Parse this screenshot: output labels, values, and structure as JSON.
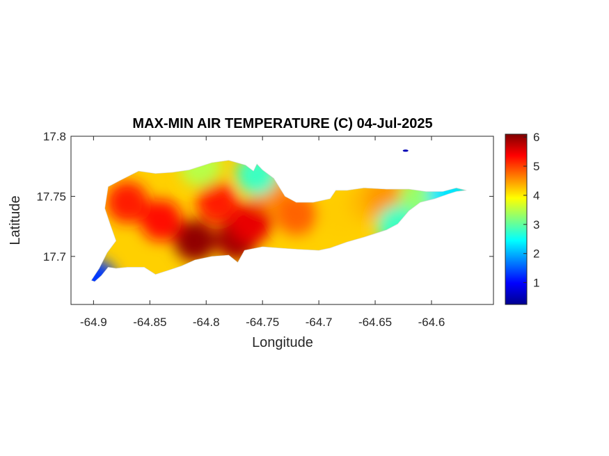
{
  "chart_data": {
    "type": "heatmap",
    "title": "MAX-MIN AIR TEMPERATURE (C) 04-Jul-2025",
    "xlabel": "Longitude",
    "ylabel": "Latitude",
    "xlim": [
      -64.92,
      -64.545
    ],
    "ylim": [
      17.66,
      17.8
    ],
    "xticks": [
      -64.9,
      -64.85,
      -64.8,
      -64.75,
      -64.7,
      -64.65,
      -64.6
    ],
    "xtick_labels": [
      "-64.9",
      "-64.85",
      "-64.8",
      "-64.75",
      "-64.7",
      "-64.65",
      "-64.6"
    ],
    "yticks": [
      17.7,
      17.75,
      17.8
    ],
    "ytick_labels": [
      "17.7",
      "17.75",
      "17.8"
    ],
    "colorbar": {
      "colormap": "jet",
      "range": [
        0.25,
        6.1
      ],
      "ticks": [
        1,
        2,
        3,
        4,
        5,
        6
      ],
      "tick_labels": [
        "1",
        "2",
        "3",
        "4",
        "5",
        "6"
      ],
      "placement": "right"
    },
    "grid": false,
    "coastline": [
      [
        -64.899,
        17.679
      ],
      [
        -64.893,
        17.684
      ],
      [
        -64.887,
        17.691
      ],
      [
        -64.88,
        17.69
      ],
      [
        -64.87,
        17.691
      ],
      [
        -64.855,
        17.691
      ],
      [
        -64.845,
        17.685
      ],
      [
        -64.835,
        17.688
      ],
      [
        -64.822,
        17.692
      ],
      [
        -64.81,
        17.697
      ],
      [
        -64.795,
        17.7
      ],
      [
        -64.78,
        17.701
      ],
      [
        -64.772,
        17.695
      ],
      [
        -64.766,
        17.705
      ],
      [
        -64.75,
        17.708
      ],
      [
        -64.735,
        17.707
      ],
      [
        -64.72,
        17.706
      ],
      [
        -64.7,
        17.705
      ],
      [
        -64.69,
        17.707
      ],
      [
        -64.675,
        17.712
      ],
      [
        -64.66,
        17.716
      ],
      [
        -64.64,
        17.722
      ],
      [
        -64.63,
        17.727
      ],
      [
        -64.62,
        17.738
      ],
      [
        -64.61,
        17.745
      ],
      [
        -64.597,
        17.748
      ],
      [
        -64.585,
        17.752
      ],
      [
        -64.578,
        17.754
      ],
      [
        -64.569,
        17.755
      ],
      [
        -64.578,
        17.757
      ],
      [
        -64.59,
        17.754
      ],
      [
        -64.605,
        17.754
      ],
      [
        -64.62,
        17.756
      ],
      [
        -64.64,
        17.756
      ],
      [
        -64.66,
        17.757
      ],
      [
        -64.675,
        17.755
      ],
      [
        -64.685,
        17.755
      ],
      [
        -64.69,
        17.748
      ],
      [
        -64.705,
        17.745
      ],
      [
        -64.72,
        17.745
      ],
      [
        -64.73,
        17.75
      ],
      [
        -64.74,
        17.765
      ],
      [
        -64.75,
        17.772
      ],
      [
        -64.755,
        17.777
      ],
      [
        -64.758,
        17.771
      ],
      [
        -64.765,
        17.776
      ],
      [
        -64.78,
        17.78
      ],
      [
        -64.795,
        17.778
      ],
      [
        -64.815,
        17.772
      ],
      [
        -64.83,
        17.77
      ],
      [
        -64.845,
        17.769
      ],
      [
        -64.86,
        17.771
      ],
      [
        -64.877,
        17.763
      ],
      [
        -64.887,
        17.758
      ],
      [
        -64.89,
        17.74
      ],
      [
        -64.885,
        17.726
      ],
      [
        -64.88,
        17.713
      ],
      [
        -64.888,
        17.703
      ],
      [
        -64.895,
        17.69
      ],
      [
        -64.902,
        17.68
      ]
    ],
    "field_hotspots": [
      {
        "lon": -64.81,
        "lat": 17.713,
        "value": 6.0
      },
      {
        "lon": -64.773,
        "lat": 17.714,
        "value": 5.9
      },
      {
        "lon": -64.76,
        "lat": 17.728,
        "value": 5.5
      },
      {
        "lon": -64.84,
        "lat": 17.73,
        "value": 5.3
      },
      {
        "lon": -64.87,
        "lat": 17.745,
        "value": 5.2
      },
      {
        "lon": -64.79,
        "lat": 17.745,
        "value": 5.2
      },
      {
        "lon": -64.745,
        "lat": 17.757,
        "value": 4.6
      },
      {
        "lon": -64.72,
        "lat": 17.735,
        "value": 4.8
      },
      {
        "lon": -64.68,
        "lat": 17.735,
        "value": 4.2
      },
      {
        "lon": -64.655,
        "lat": 17.745,
        "value": 4.3
      },
      {
        "lon": -64.64,
        "lat": 17.748,
        "value": 4.5
      },
      {
        "lon": -64.61,
        "lat": 17.748,
        "value": 3.3
      },
      {
        "lon": -64.585,
        "lat": 17.752,
        "value": 2.3
      },
      {
        "lon": -64.805,
        "lat": 17.775,
        "value": 3.5
      },
      {
        "lon": -64.755,
        "lat": 17.768,
        "value": 2.8
      },
      {
        "lon": -64.898,
        "lat": 17.68,
        "value": 1.3
      },
      {
        "lon": -64.63,
        "lat": 17.725,
        "value": 2.8
      }
    ],
    "islet": {
      "lon": -64.623,
      "lat": 17.788,
      "value": 0.5
    }
  }
}
